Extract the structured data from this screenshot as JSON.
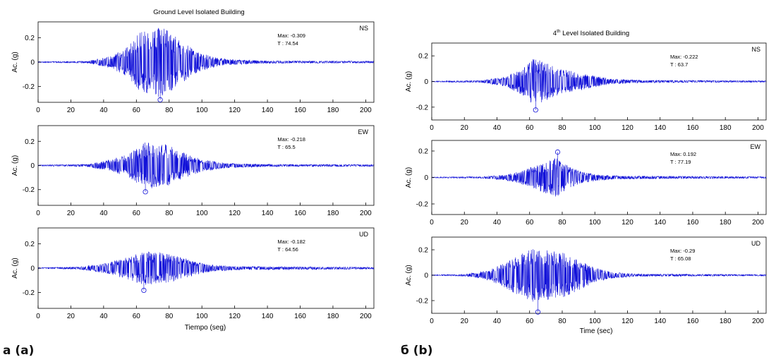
{
  "panels": [
    {
      "title": "Ground Level Isolated Building",
      "title_sup": "",
      "xlabel": "Tiempo (seg)",
      "caption": "a (a)"
    },
    {
      "title": " Level Isolated Building",
      "title_sup": "th",
      "title_prefix": "4",
      "xlabel": "Time (sec)",
      "caption": "б (b)"
    }
  ],
  "chart_data": [
    {
      "type": "line",
      "panel": 0,
      "component": "NS",
      "ylabel": "Ac. (g)",
      "xlim": [
        0,
        205
      ],
      "ylim": [
        -0.33,
        0.33
      ],
      "xticks": [
        0,
        20,
        40,
        60,
        80,
        100,
        120,
        140,
        160,
        180,
        200
      ],
      "yticks": [
        -0.2,
        0,
        0.2
      ],
      "ytick_labels": [
        "-0.2",
        "0",
        "0.2"
      ],
      "max_label": "Max: -0.309",
      "t_label": "T   : 74.54",
      "peak": {
        "t": 74.54,
        "a": -0.309
      },
      "envelope": [
        [
          0,
          0.004
        ],
        [
          30,
          0.008
        ],
        [
          45,
          0.05
        ],
        [
          55,
          0.13
        ],
        [
          62,
          0.24
        ],
        [
          66,
          0.27
        ],
        [
          70,
          0.26
        ],
        [
          75,
          0.3
        ],
        [
          82,
          0.23
        ],
        [
          90,
          0.15
        ],
        [
          100,
          0.07
        ],
        [
          115,
          0.025
        ],
        [
          140,
          0.01
        ],
        [
          205,
          0.008
        ]
      ],
      "seed": 11
    },
    {
      "type": "line",
      "panel": 0,
      "component": "EW",
      "ylabel": "Ac. (g)",
      "xlim": [
        0,
        205
      ],
      "ylim": [
        -0.33,
        0.33
      ],
      "xticks": [
        0,
        20,
        40,
        60,
        80,
        100,
        120,
        140,
        160,
        180,
        200
      ],
      "yticks": [
        -0.2,
        0,
        0.2
      ],
      "ytick_labels": [
        "-0.2",
        "0",
        "0.2"
      ],
      "max_label": "Max: -0.218",
      "t_label": "T   : 65.5",
      "peak": {
        "t": 65.5,
        "a": -0.218
      },
      "envelope": [
        [
          0,
          0.004
        ],
        [
          30,
          0.01
        ],
        [
          45,
          0.05
        ],
        [
          55,
          0.1
        ],
        [
          62,
          0.16
        ],
        [
          66,
          0.2
        ],
        [
          72,
          0.18
        ],
        [
          80,
          0.17
        ],
        [
          90,
          0.1
        ],
        [
          100,
          0.05
        ],
        [
          115,
          0.02
        ],
        [
          140,
          0.01
        ],
        [
          205,
          0.008
        ]
      ],
      "seed": 23
    },
    {
      "type": "line",
      "panel": 0,
      "component": "UD",
      "ylabel": "Ac. (g)",
      "xlim": [
        0,
        205
      ],
      "ylim": [
        -0.33,
        0.33
      ],
      "xticks": [
        0,
        20,
        40,
        60,
        80,
        100,
        120,
        140,
        160,
        180,
        200
      ],
      "yticks": [
        -0.2,
        0,
        0.2
      ],
      "ytick_labels": [
        "-0.2",
        "0",
        "0.2"
      ],
      "max_label": "Max: -0.182",
      "t_label": "T   : 64.56",
      "peak": {
        "t": 64.56,
        "a": -0.182
      },
      "envelope": [
        [
          0,
          0.004
        ],
        [
          25,
          0.01
        ],
        [
          40,
          0.04
        ],
        [
          52,
          0.08
        ],
        [
          60,
          0.12
        ],
        [
          66,
          0.14
        ],
        [
          75,
          0.13
        ],
        [
          85,
          0.1
        ],
        [
          95,
          0.06
        ],
        [
          105,
          0.03
        ],
        [
          120,
          0.015
        ],
        [
          205,
          0.008
        ]
      ],
      "seed": 37
    },
    {
      "type": "line",
      "panel": 1,
      "component": "NS",
      "ylabel": "Ac. (g)",
      "xlim": [
        0,
        205
      ],
      "ylim": [
        -0.3,
        0.3
      ],
      "xticks": [
        0,
        20,
        40,
        60,
        80,
        100,
        120,
        140,
        160,
        180,
        200
      ],
      "yticks": [
        -0.2,
        0,
        0.2
      ],
      "ytick_labels": [
        "-0.2",
        "0",
        "0.2"
      ],
      "max_label": "Max: -0.222",
      "t_label": "T   : 63.7",
      "peak": {
        "t": 63.7,
        "a": -0.222
      },
      "envelope": [
        [
          0,
          0.003
        ],
        [
          30,
          0.008
        ],
        [
          45,
          0.04
        ],
        [
          55,
          0.1
        ],
        [
          62,
          0.18
        ],
        [
          66,
          0.17
        ],
        [
          72,
          0.14
        ],
        [
          80,
          0.1
        ],
        [
          90,
          0.07
        ],
        [
          100,
          0.045
        ],
        [
          110,
          0.02
        ],
        [
          130,
          0.01
        ],
        [
          205,
          0.006
        ]
      ],
      "seed": 51
    },
    {
      "type": "line",
      "panel": 1,
      "component": "EW",
      "ylabel": "Ac. (g)",
      "xlim": [
        0,
        205
      ],
      "ylim": [
        -0.28,
        0.28
      ],
      "xticks": [
        0,
        20,
        40,
        60,
        80,
        100,
        120,
        140,
        160,
        180,
        200
      ],
      "yticks": [
        -0.2,
        0,
        0.2
      ],
      "ytick_labels": [
        "-0.2",
        "0",
        "0.2"
      ],
      "max_label": "Max: 0.192",
      "t_label": "T   : 77.19",
      "peak": {
        "t": 77.19,
        "a": 0.192
      },
      "envelope": [
        [
          0,
          0.003
        ],
        [
          30,
          0.006
        ],
        [
          45,
          0.02
        ],
        [
          55,
          0.05
        ],
        [
          62,
          0.09
        ],
        [
          70,
          0.12
        ],
        [
          76,
          0.15
        ],
        [
          82,
          0.1
        ],
        [
          90,
          0.05
        ],
        [
          100,
          0.025
        ],
        [
          115,
          0.012
        ],
        [
          205,
          0.006
        ]
      ],
      "seed": 67
    },
    {
      "type": "line",
      "panel": 1,
      "component": "UD",
      "ylabel": "Ac. (g)",
      "xlim": [
        0,
        205
      ],
      "ylim": [
        -0.3,
        0.3
      ],
      "xticks": [
        0,
        20,
        40,
        60,
        80,
        100,
        120,
        140,
        160,
        180,
        200
      ],
      "yticks": [
        -0.2,
        0,
        0.2
      ],
      "ytick_labels": [
        "-0.2",
        "0",
        "0.2"
      ],
      "max_label": "Max: -0.29",
      "t_label": "T   : 65.08",
      "peak": {
        "t": 65.08,
        "a": -0.29
      },
      "envelope": [
        [
          0,
          0.003
        ],
        [
          20,
          0.008
        ],
        [
          35,
          0.04
        ],
        [
          45,
          0.1
        ],
        [
          55,
          0.17
        ],
        [
          62,
          0.21
        ],
        [
          70,
          0.2
        ],
        [
          80,
          0.18
        ],
        [
          90,
          0.12
        ],
        [
          100,
          0.06
        ],
        [
          110,
          0.025
        ],
        [
          125,
          0.01
        ],
        [
          205,
          0.006
        ]
      ],
      "seed": 83
    }
  ],
  "colors": {
    "trace": "#1010d8",
    "axis": "#000000",
    "text": "#000000"
  }
}
